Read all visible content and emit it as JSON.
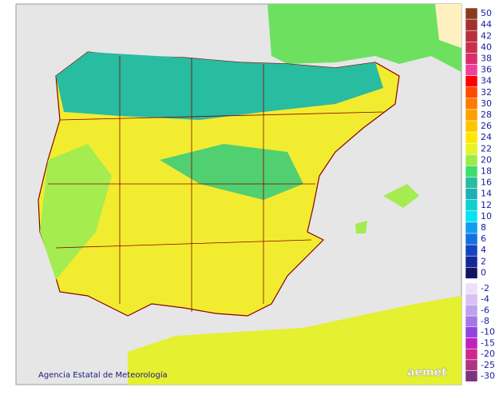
{
  "map": {
    "attribution": "Agencia Estatal de Meteorología",
    "logo": "aemet",
    "legend": {
      "positive": [
        {
          "label": 50,
          "color": "#8b3a1e"
        },
        {
          "label": 44,
          "color": "#a33030"
        },
        {
          "label": 42,
          "color": "#b8303c"
        },
        {
          "label": 40,
          "color": "#c83050"
        },
        {
          "label": 38,
          "color": "#d8306c"
        },
        {
          "label": 36,
          "color": "#f0409a"
        },
        {
          "label": 34,
          "color": "#ff0000"
        },
        {
          "label": 32,
          "color": "#ff4a00"
        },
        {
          "label": 30,
          "color": "#ff7a00"
        },
        {
          "label": 28,
          "color": "#ffa000"
        },
        {
          "label": 26,
          "color": "#ffc400"
        },
        {
          "label": 24,
          "color": "#ffe800"
        },
        {
          "label": 22,
          "color": "#e4f428"
        },
        {
          "label": 20,
          "color": "#9cec48"
        },
        {
          "label": 18,
          "color": "#40dc6c"
        },
        {
          "label": 16,
          "color": "#28bca0"
        },
        {
          "label": 14,
          "color": "#20b0b4"
        },
        {
          "label": 12,
          "color": "#10d0d0"
        },
        {
          "label": 10,
          "color": "#00e4f4"
        },
        {
          "label": 8,
          "color": "#109cf0"
        },
        {
          "label": 6,
          "color": "#1470e0"
        },
        {
          "label": 4,
          "color": "#1444c0"
        },
        {
          "label": 2,
          "color": "#142898"
        },
        {
          "label": 0,
          "color": "#141464"
        }
      ],
      "negative": [
        {
          "label": -2,
          "color": "#ece0fa"
        },
        {
          "label": -4,
          "color": "#d8c0f4"
        },
        {
          "label": -6,
          "color": "#c0a0ec"
        },
        {
          "label": -8,
          "color": "#a478e4"
        },
        {
          "label": -10,
          "color": "#9044dc"
        },
        {
          "label": -15,
          "color": "#c020c0"
        },
        {
          "label": -20,
          "color": "#d0288c"
        },
        {
          "label": -25,
          "color": "#b03484"
        },
        {
          "label": -30,
          "color": "#7c3480"
        }
      ]
    }
  }
}
